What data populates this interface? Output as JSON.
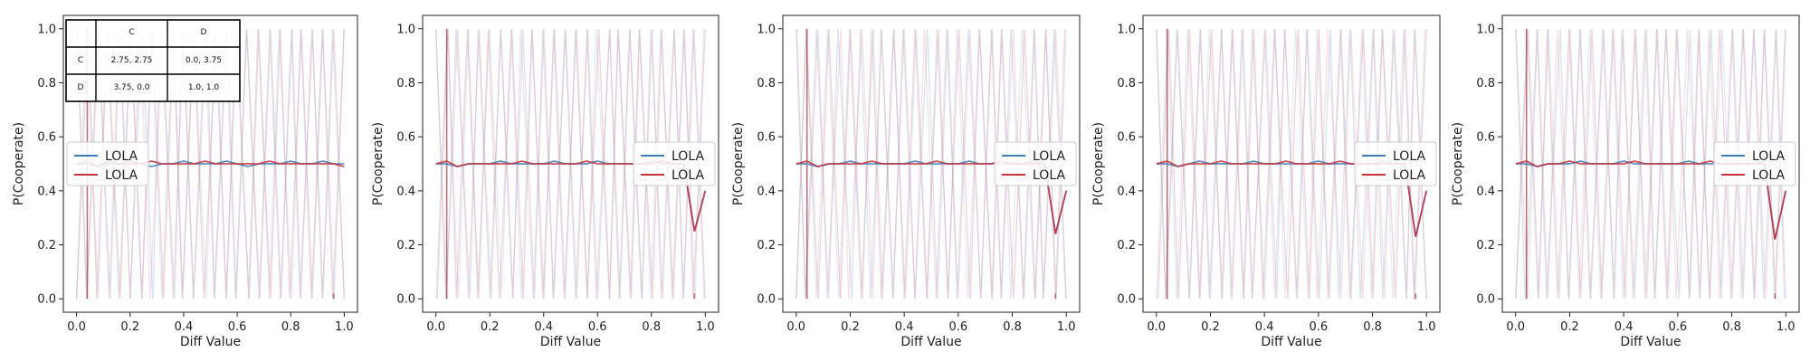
{
  "colors": {
    "blue": "#3f7fb8",
    "red": "#c8333d",
    "faint_blue": "#7fa2cc",
    "faint_red": "#d97c85",
    "mean_line": "#9a3342",
    "axis": "#222222"
  },
  "payoff_table": {
    "col_headers": [
      "C",
      "D"
    ],
    "rows": [
      {
        "label": "C",
        "cells": [
          "2.75, 2.75",
          "0.0, 3.75"
        ]
      },
      {
        "label": "D",
        "cells": [
          "3.75, 0.0",
          "1.0, 1.0"
        ]
      }
    ]
  },
  "chart_data": [
    {
      "type": "line",
      "xlabel": "Diff Value",
      "ylabel": "P(Cooperate)",
      "xlim": [
        0,
        1
      ],
      "ylim": [
        0,
        1
      ],
      "xticks": [
        "0.0",
        "0.2",
        "0.4",
        "0.6",
        "0.8",
        "1.0"
      ],
      "yticks": [
        "0.0",
        "0.2",
        "0.4",
        "0.6",
        "0.8",
        "1.0"
      ],
      "legend": {
        "placement": "center-left",
        "entries": [
          "LOLA",
          "LOLA"
        ]
      },
      "x": [
        0.0,
        0.04,
        0.08,
        0.12,
        0.16,
        0.2,
        0.24,
        0.28,
        0.32,
        0.36,
        0.4,
        0.44,
        0.48,
        0.52,
        0.56,
        0.6,
        0.64,
        0.68,
        0.72,
        0.76,
        0.8,
        0.84,
        0.88,
        0.92,
        0.96,
        1.0
      ],
      "series": [
        {
          "values": [
            0.5,
            0.51,
            0.49,
            0.5,
            0.5,
            0.51,
            0.5,
            0.49,
            0.5,
            0.5,
            0.51,
            0.5,
            0.5,
            0.5,
            0.51,
            0.5,
            0.49,
            0.5,
            0.5,
            0.5,
            0.51,
            0.5,
            0.5,
            0.51,
            0.5,
            0.5
          ]
        },
        {
          "values": [
            0.5,
            0.5,
            0.49,
            0.51,
            0.5,
            0.5,
            0.5,
            0.51,
            0.5,
            0.5,
            0.5,
            0.5,
            0.51,
            0.5,
            0.5,
            0.5,
            0.5,
            0.5,
            0.51,
            0.5,
            0.5,
            0.5,
            0.5,
            0.5,
            0.5,
            0.49
          ]
        }
      ]
    },
    {
      "type": "line",
      "xlabel": "Diff Value",
      "ylabel": "P(Cooperate)",
      "xlim": [
        0,
        1
      ],
      "ylim": [
        0,
        1
      ],
      "xticks": [
        "0.0",
        "0.2",
        "0.4",
        "0.6",
        "0.8",
        "1.0"
      ],
      "yticks": [
        "0.0",
        "0.2",
        "0.4",
        "0.6",
        "0.8",
        "1.0"
      ],
      "legend": {
        "placement": "center-right",
        "entries": [
          "LOLA",
          "LOLA"
        ]
      },
      "x": [
        0.0,
        0.04,
        0.08,
        0.12,
        0.16,
        0.2,
        0.24,
        0.28,
        0.32,
        0.36,
        0.4,
        0.44,
        0.48,
        0.52,
        0.56,
        0.6,
        0.64,
        0.68,
        0.72,
        0.76,
        0.8,
        0.84,
        0.88,
        0.92,
        0.96,
        1.0
      ],
      "series": [
        {
          "values": [
            0.5,
            0.5,
            0.49,
            0.5,
            0.5,
            0.5,
            0.51,
            0.5,
            0.5,
            0.5,
            0.5,
            0.51,
            0.5,
            0.5,
            0.5,
            0.51,
            0.5,
            0.5,
            0.5,
            0.5,
            0.51,
            0.5,
            0.5,
            0.5,
            0.25,
            0.4
          ]
        },
        {
          "values": [
            0.5,
            0.51,
            0.49,
            0.5,
            0.5,
            0.5,
            0.5,
            0.5,
            0.51,
            0.5,
            0.5,
            0.5,
            0.5,
            0.5,
            0.51,
            0.5,
            0.5,
            0.5,
            0.5,
            0.5,
            0.5,
            0.51,
            0.5,
            0.5,
            0.25,
            0.4
          ]
        }
      ]
    },
    {
      "type": "line",
      "xlabel": "Diff Value",
      "ylabel": "P(Cooperate)",
      "xlim": [
        0,
        1
      ],
      "ylim": [
        0,
        1
      ],
      "xticks": [
        "0.0",
        "0.2",
        "0.4",
        "0.6",
        "0.8",
        "1.0"
      ],
      "yticks": [
        "0.0",
        "0.2",
        "0.4",
        "0.6",
        "0.8",
        "1.0"
      ],
      "legend": {
        "placement": "center-right",
        "entries": [
          "LOLA",
          "LOLA"
        ]
      },
      "x": [
        0.0,
        0.04,
        0.08,
        0.12,
        0.16,
        0.2,
        0.24,
        0.28,
        0.32,
        0.36,
        0.4,
        0.44,
        0.48,
        0.52,
        0.56,
        0.6,
        0.64,
        0.68,
        0.72,
        0.76,
        0.8,
        0.84,
        0.88,
        0.92,
        0.96,
        1.0
      ],
      "series": [
        {
          "values": [
            0.5,
            0.5,
            0.49,
            0.5,
            0.5,
            0.51,
            0.5,
            0.5,
            0.5,
            0.5,
            0.5,
            0.51,
            0.5,
            0.5,
            0.5,
            0.5,
            0.51,
            0.5,
            0.5,
            0.5,
            0.5,
            0.5,
            0.51,
            0.5,
            0.24,
            0.4
          ]
        },
        {
          "values": [
            0.5,
            0.51,
            0.49,
            0.5,
            0.5,
            0.5,
            0.5,
            0.51,
            0.5,
            0.5,
            0.5,
            0.5,
            0.5,
            0.51,
            0.5,
            0.5,
            0.5,
            0.5,
            0.5,
            0.51,
            0.5,
            0.5,
            0.5,
            0.5,
            0.24,
            0.4
          ]
        }
      ]
    },
    {
      "type": "line",
      "xlabel": "Diff Value",
      "ylabel": "P(Cooperate)",
      "xlim": [
        0,
        1
      ],
      "ylim": [
        0,
        1
      ],
      "xticks": [
        "0.0",
        "0.2",
        "0.4",
        "0.6",
        "0.8",
        "1.0"
      ],
      "yticks": [
        "0.0",
        "0.2",
        "0.4",
        "0.6",
        "0.8",
        "1.0"
      ],
      "legend": {
        "placement": "center-right",
        "entries": [
          "LOLA",
          "LOLA"
        ]
      },
      "x": [
        0.0,
        0.04,
        0.08,
        0.12,
        0.16,
        0.2,
        0.24,
        0.28,
        0.32,
        0.36,
        0.4,
        0.44,
        0.48,
        0.52,
        0.56,
        0.6,
        0.64,
        0.68,
        0.72,
        0.76,
        0.8,
        0.84,
        0.88,
        0.92,
        0.96,
        1.0
      ],
      "series": [
        {
          "values": [
            0.5,
            0.5,
            0.49,
            0.5,
            0.51,
            0.5,
            0.5,
            0.5,
            0.5,
            0.51,
            0.5,
            0.5,
            0.5,
            0.5,
            0.5,
            0.51,
            0.5,
            0.5,
            0.5,
            0.5,
            0.5,
            0.51,
            0.5,
            0.5,
            0.23,
            0.4
          ]
        },
        {
          "values": [
            0.5,
            0.51,
            0.49,
            0.5,
            0.5,
            0.5,
            0.51,
            0.5,
            0.5,
            0.5,
            0.5,
            0.5,
            0.51,
            0.5,
            0.5,
            0.5,
            0.5,
            0.51,
            0.5,
            0.5,
            0.5,
            0.5,
            0.5,
            0.5,
            0.23,
            0.4
          ]
        }
      ]
    },
    {
      "type": "line",
      "xlabel": "Diff Value",
      "ylabel": "P(Cooperate)",
      "xlim": [
        0,
        1
      ],
      "ylim": [
        0,
        1
      ],
      "xticks": [
        "0.0",
        "0.2",
        "0.4",
        "0.6",
        "0.8",
        "1.0"
      ],
      "yticks": [
        "0.0",
        "0.2",
        "0.4",
        "0.6",
        "0.8",
        "1.0"
      ],
      "legend": {
        "placement": "center-right",
        "entries": [
          "LOLA",
          "LOLA"
        ]
      },
      "x": [
        0.0,
        0.04,
        0.08,
        0.12,
        0.16,
        0.2,
        0.24,
        0.28,
        0.32,
        0.36,
        0.4,
        0.44,
        0.48,
        0.52,
        0.56,
        0.6,
        0.64,
        0.68,
        0.72,
        0.76,
        0.8,
        0.84,
        0.88,
        0.92,
        0.96,
        1.0
      ],
      "series": [
        {
          "values": [
            0.5,
            0.5,
            0.49,
            0.5,
            0.5,
            0.5,
            0.51,
            0.5,
            0.5,
            0.5,
            0.51,
            0.5,
            0.5,
            0.5,
            0.5,
            0.5,
            0.51,
            0.5,
            0.5,
            0.5,
            0.5,
            0.5,
            0.5,
            0.51,
            0.22,
            0.4
          ]
        },
        {
          "values": [
            0.5,
            0.51,
            0.49,
            0.5,
            0.5,
            0.51,
            0.5,
            0.5,
            0.5,
            0.5,
            0.5,
            0.51,
            0.5,
            0.5,
            0.5,
            0.5,
            0.5,
            0.5,
            0.51,
            0.5,
            0.5,
            0.5,
            0.5,
            0.5,
            0.22,
            0.4
          ]
        }
      ]
    }
  ]
}
